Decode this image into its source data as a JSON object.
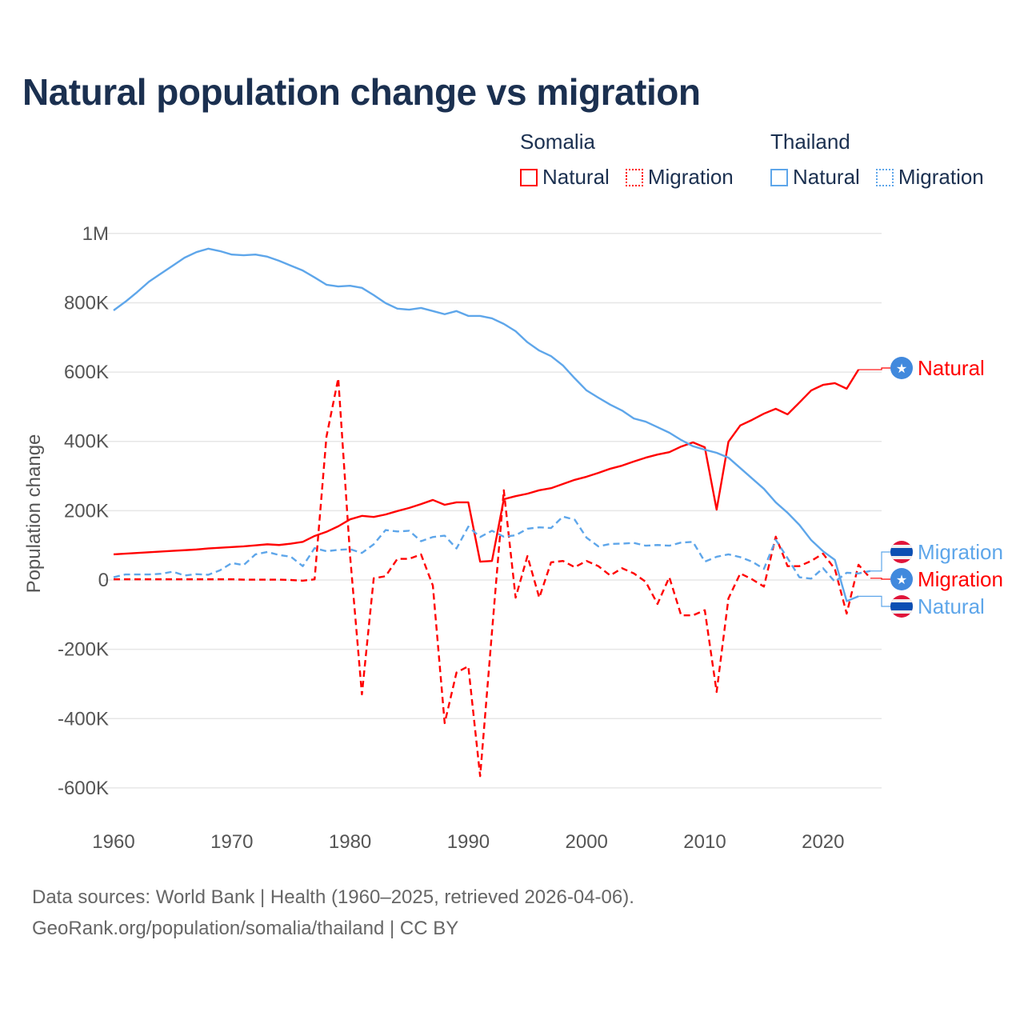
{
  "title": "Natural population change vs migration",
  "legend": {
    "groups": [
      {
        "name": "Somalia",
        "color": "#ff0000",
        "items": [
          "Natural",
          "Migration"
        ]
      },
      {
        "name": "Thailand",
        "color": "#5ea6ea",
        "items": [
          "Natural",
          "Migration"
        ]
      }
    ]
  },
  "footer": {
    "line1": "Data sources: World Bank | Health (1960–2025, retrieved 2026-04-06).",
    "line2": "GeoRank.org/population/somalia/thailand | CC BY"
  },
  "chart_data": {
    "type": "line",
    "title": "Natural population change vs migration",
    "xlabel": "",
    "ylabel": "Population change",
    "xlim": [
      1960,
      2025
    ],
    "ylim": [
      -700000,
      1000000
    ],
    "x_ticks": [
      1960,
      1970,
      1980,
      1990,
      2000,
      2010,
      2020
    ],
    "x_tick_labels": [
      "1960",
      "1970",
      "1980",
      "1990",
      "2000",
      "2010",
      "2020"
    ],
    "y_ticks": [
      1000000,
      800000,
      600000,
      400000,
      200000,
      0,
      -200000,
      -400000,
      -600000
    ],
    "y_tick_labels": [
      "1M",
      "800K",
      "600K",
      "400K",
      "200K",
      "0",
      "-200K",
      "-400K",
      "-600K"
    ],
    "grid": true,
    "legend_position": "top-right",
    "x_start": 1960,
    "units": "thousands",
    "series": [
      {
        "name": "Somalia Natural",
        "country": "Somalia",
        "kind": "Natural",
        "color": "#ff0000",
        "dash": "solid",
        "end_label": "Natural",
        "values": [
          74,
          76,
          78,
          80,
          82,
          84,
          86,
          88,
          91,
          93,
          95,
          97,
          100,
          103,
          101,
          105,
          110,
          127,
          139,
          155,
          175,
          185,
          182,
          189,
          199,
          208,
          219,
          231,
          217,
          224,
          224,
          53,
          55,
          233,
          242,
          249,
          259,
          265,
          277,
          289,
          298,
          309,
          321,
          330,
          342,
          353,
          362,
          369,
          385,
          397,
          383,
          203,
          399,
          446,
          462,
          480,
          494,
          478,
          512,
          547,
          563,
          568,
          552,
          607,
          null
        ]
      },
      {
        "name": "Somalia Migration",
        "country": "Somalia",
        "kind": "Migration",
        "color": "#ff0000",
        "dash": "dashed",
        "end_label": "Migration",
        "values": [
          2,
          2,
          2,
          2,
          2,
          2,
          2,
          2,
          2,
          2,
          2,
          1,
          1,
          1,
          1,
          0,
          -2,
          2,
          413,
          582,
          70,
          -330,
          5,
          11,
          61,
          61,
          74,
          -16,
          -413,
          -267,
          -249,
          -566,
          -150,
          259,
          -51,
          69,
          -51,
          51,
          55,
          37,
          55,
          40,
          13,
          34,
          19,
          -5,
          -69,
          8,
          -102,
          -102,
          -87,
          -323,
          -53,
          19,
          2,
          -19,
          125,
          40,
          40,
          55,
          76,
          32,
          -97,
          44,
          5
        ]
      },
      {
        "name": "Thailand Natural",
        "country": "Thailand",
        "kind": "Natural",
        "color": "#5ea6ea",
        "dash": "solid",
        "end_label": "Natural",
        "values": [
          778,
          803,
          831,
          861,
          884,
          907,
          930,
          946,
          956,
          949,
          939,
          937,
          939,
          933,
          921,
          907,
          893,
          873,
          852,
          847,
          849,
          843,
          822,
          799,
          783,
          780,
          785,
          776,
          767,
          776,
          762,
          762,
          755,
          739,
          718,
          686,
          662,
          646,
          619,
          582,
          547,
          526,
          506,
          489,
          466,
          457,
          441,
          425,
          404,
          386,
          376,
          367,
          353,
          323,
          293,
          263,
          224,
          194,
          159,
          115,
          83,
          58,
          -61,
          -47,
          null
        ]
      },
      {
        "name": "Thailand Migration",
        "country": "Thailand",
        "kind": "Migration",
        "color": "#5ea6ea",
        "dash": "dashed",
        "end_label": "Migration",
        "values": [
          8,
          16,
          16,
          16,
          18,
          24,
          13,
          17,
          15,
          28,
          49,
          43,
          74,
          81,
          72,
          67,
          40,
          92,
          83,
          87,
          89,
          78,
          103,
          144,
          140,
          142,
          112,
          124,
          128,
          91,
          154,
          124,
          142,
          125,
          129,
          148,
          152,
          150,
          183,
          174,
          122,
          97,
          104,
          105,
          107,
          99,
          101,
          99,
          108,
          110,
          53,
          67,
          74,
          66,
          53,
          32,
          116,
          63,
          8,
          4,
          34,
          -5,
          21,
          19,
          26
        ]
      }
    ]
  }
}
